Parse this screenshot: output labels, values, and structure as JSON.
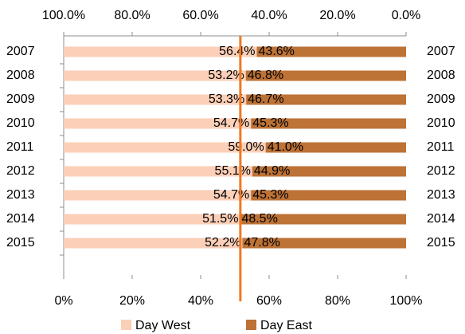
{
  "chart_data": {
    "type": "stacked-bar-horizontal",
    "categories": [
      "2007",
      "2008",
      "2009",
      "2010",
      "2011",
      "2012",
      "2013",
      "2014",
      "2015"
    ],
    "series": [
      {
        "name": "Day West",
        "color": "#fbcfb8",
        "label_color": "#000000",
        "values": [
          56.4,
          53.2,
          53.3,
          54.7,
          59.0,
          55.1,
          54.7,
          51.5,
          52.2
        ],
        "value_labels": [
          "56.4%",
          "53.2%",
          "53.3%",
          "54.7%",
          "59.0%",
          "55.1%",
          "54.7%",
          "51.5%",
          "52.2%"
        ]
      },
      {
        "name": "Day East",
        "color": "#bd7236",
        "label_color": "#ffffff",
        "values": [
          43.6,
          46.8,
          46.7,
          45.3,
          41.0,
          44.9,
          45.3,
          48.5,
          47.8
        ],
        "value_labels": [
          "43.6%",
          "46.8%",
          "46.7%",
          "45.3%",
          "41.0%",
          "44.9%",
          "45.3%",
          "48.5%",
          "47.8%"
        ]
      }
    ],
    "xlim": [
      0,
      100
    ],
    "xticks": [
      {
        "value": 0,
        "label": "0%"
      },
      {
        "value": 20,
        "label": "20%"
      },
      {
        "value": 40,
        "label": "40%"
      },
      {
        "value": 60,
        "label": "60%"
      },
      {
        "value": 80,
        "label": "80%"
      },
      {
        "value": 100,
        "label": "100%"
      }
    ],
    "x2lim": [
      100,
      0
    ],
    "x2ticks": [
      {
        "value": 100,
        "label": "100.0%"
      },
      {
        "value": 80,
        "label": "80.0%"
      },
      {
        "value": 60,
        "label": "60.0%"
      },
      {
        "value": 40,
        "label": "40.0%"
      },
      {
        "value": 20,
        "label": "20.0%"
      },
      {
        "value": 0,
        "label": "0.0%"
      }
    ],
    "reference_line": {
      "value": 51.6,
      "color": "#f07820"
    },
    "legend": "bottom"
  }
}
